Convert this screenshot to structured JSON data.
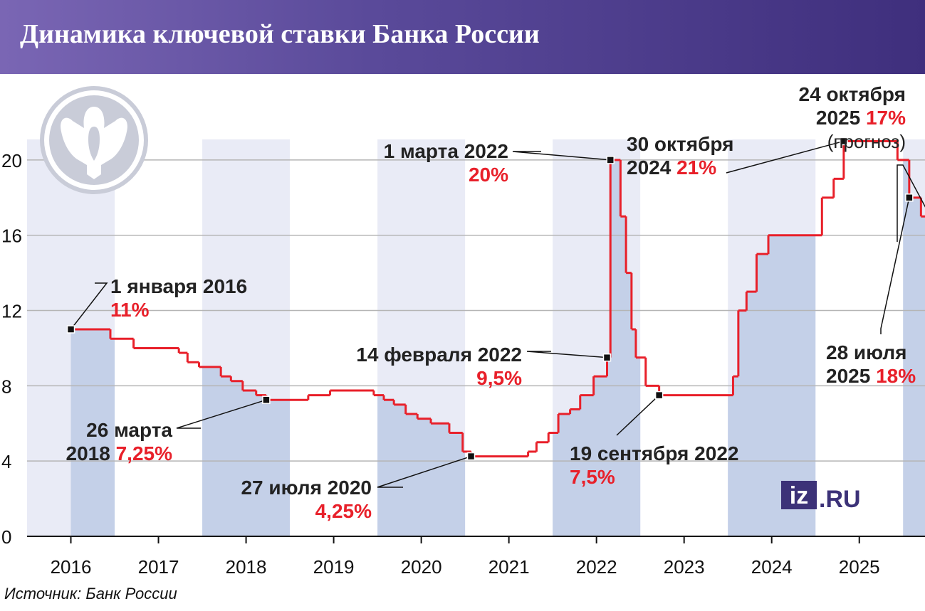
{
  "title": "Динамика ключевой ставки Банка России",
  "source": "Источник: Банк России",
  "logo": {
    "left": "iz",
    "right": ".RU"
  },
  "emblem_icon": "double-headed-eagle-icon",
  "colors": {
    "header_start": "#7a66b4",
    "header_end": "#3f2f7d",
    "line": "#e8202a",
    "band": "#c4d0e8",
    "band_light": "#e9ebf6",
    "grid": "#b5b5b5",
    "highlight": "#e8202a",
    "logo": "#3c3278"
  },
  "chart_data": {
    "type": "line",
    "ylim": [
      0,
      22
    ],
    "xlim": [
      2015.5,
      2025.75
    ],
    "yticks": [
      0,
      4,
      8,
      12,
      16,
      20
    ],
    "grid": true,
    "xticks": [
      {
        "label": "2016",
        "x": 2016.0
      },
      {
        "label": "2017",
        "x": 2017.0
      },
      {
        "label": "2018",
        "x": 2018.0
      },
      {
        "label": "2019",
        "x": 2019.0
      },
      {
        "label": "2020",
        "x": 2020.0
      },
      {
        "label": "2021",
        "x": 2021.0
      },
      {
        "label": "2022",
        "x": 2022.0
      },
      {
        "label": "2023",
        "x": 2023.0
      },
      {
        "label": "2024",
        "x": 2024.0
      },
      {
        "label": "2025",
        "x": 2025.0
      }
    ],
    "series": [
      {
        "type": "step",
        "x": [
          "2016-01-01",
          "2016-06-14",
          "2016-09-19",
          "2017-03-27",
          "2017-05-02",
          "2017-06-19",
          "2017-09-18",
          "2017-10-30",
          "2017-12-18",
          "2018-02-12",
          "2018-03-26",
          "2018-09-17",
          "2018-12-17",
          "2019-06-17",
          "2019-07-29",
          "2019-09-09",
          "2019-10-28",
          "2019-12-16",
          "2020-02-10",
          "2020-04-27",
          "2020-06-22",
          "2020-07-27",
          "2021-03-22",
          "2021-04-26",
          "2021-06-15",
          "2021-07-26",
          "2021-09-13",
          "2021-10-25",
          "2021-12-20",
          "2022-02-14",
          "2022-02-28",
          "2022-04-11",
          "2022-05-04",
          "2022-05-27",
          "2022-06-14",
          "2022-07-25",
          "2022-09-19",
          "2023-07-24",
          "2023-08-15",
          "2023-09-18",
          "2023-10-30",
          "2023-12-18",
          "2024-07-29",
          "2024-09-16",
          "2024-10-28",
          "2025-06-09",
          "2025-07-28",
          "2025-09-15",
          "2025-10-24"
        ],
        "values": [
          11,
          10.5,
          10,
          9.75,
          9.25,
          9,
          8.5,
          8.25,
          7.75,
          7.5,
          7.25,
          7.5,
          7.75,
          7.5,
          7.25,
          7,
          6.5,
          6.25,
          6,
          5.5,
          4.5,
          4.25,
          4.5,
          5,
          5.5,
          6.5,
          6.75,
          7.5,
          8.5,
          9.5,
          20,
          17,
          14,
          11,
          9.5,
          8,
          7.5,
          8.5,
          12,
          13,
          15,
          16,
          18,
          19,
          21,
          20,
          18,
          17,
          17
        ]
      }
    ],
    "bands": [
      {
        "from": 2015.5,
        "to": 2016.5,
        "level": 11
      },
      {
        "from": 2017.5,
        "to": 2018.5,
        "level": 7.75
      },
      {
        "from": 2019.5,
        "to": 2020.5,
        "level": 6.25
      },
      {
        "from": 2021.5,
        "to": 2022.5,
        "level": 20
      },
      {
        "from": 2023.5,
        "to": 2024.5,
        "level": 21
      },
      {
        "from": 2025.5,
        "to": 2025.75,
        "level": 0
      }
    ],
    "forecast_point": {
      "x": "2025-10-24",
      "value": 17
    },
    "annotations": [
      {
        "id": "jan2016",
        "x": "2016-01-01",
        "value": 11,
        "date_lines": [
          "1 января 2016"
        ],
        "pct": "11%"
      },
      {
        "id": "mar2018",
        "x": "2018-03-26",
        "value": 7.25,
        "date_lines": [
          "26 марта",
          "2018"
        ],
        "pct": "7,25%"
      },
      {
        "id": "jul2020",
        "x": "2020-07-27",
        "value": 4.25,
        "date_lines": [
          "27 июля 2020"
        ],
        "pct": "4,25%"
      },
      {
        "id": "feb2022",
        "x": "2022-02-14",
        "value": 9.5,
        "date_lines": [
          "14 февраля 2022"
        ],
        "pct": "9,5%"
      },
      {
        "id": "mar2022",
        "x": "2022-02-28",
        "value": 20,
        "date_lines": [
          "1 марта 2022"
        ],
        "pct": "20%"
      },
      {
        "id": "sep2022",
        "x": "2022-09-19",
        "value": 7.5,
        "date_lines": [
          "19 сентября 2022"
        ],
        "pct": "7,5%"
      },
      {
        "id": "oct2024",
        "x": "2024-10-28",
        "value": 21,
        "date_lines": [
          "30 октября",
          "2024"
        ],
        "pct": "21%"
      },
      {
        "id": "jul2025",
        "x": "2025-07-28",
        "value": 18,
        "date_lines": [
          "28 июля",
          "2025"
        ],
        "pct": "18%"
      },
      {
        "id": "oct2025",
        "x": "2025-10-24",
        "value": 17,
        "date_lines": [
          "24 октября",
          "2025"
        ],
        "pct": "17%",
        "note": "(прогноз)"
      }
    ]
  }
}
